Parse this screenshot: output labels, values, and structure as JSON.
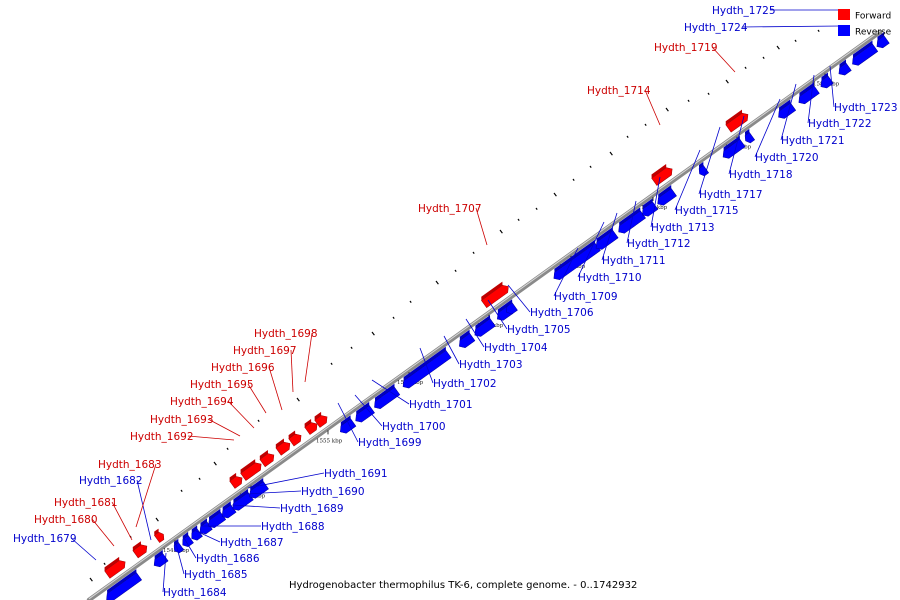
{
  "caption": "Hydrogenobacter thermophilus TK-6, complete genome. - 0..1742932",
  "legend": [
    {
      "label": "Forward",
      "color": "#ff0000"
    },
    {
      "label": "Reverse",
      "color": "#0000ff"
    }
  ],
  "colors": {
    "forward": "#ff0000",
    "reverse": "#0000ff",
    "forward_label": "#cc0000",
    "reverse_label": "#0000cc",
    "backbone": "#888888"
  },
  "kbp_ticks": [
    {
      "label": "1545 kbp",
      "kbp": 1545
    },
    {
      "label": "1550 kbp",
      "kbp": 1550
    },
    {
      "label": "1555 kbp",
      "kbp": 1555
    },
    {
      "label": "1560 kbp",
      "kbp": 1560
    },
    {
      "label": "1565 kbp",
      "kbp": 1565
    },
    {
      "label": "1570 kbp",
      "kbp": 1570
    },
    {
      "label": "1575 kbp",
      "kbp": 1575
    },
    {
      "label": "1580 kbp",
      "kbp": 1580
    },
    {
      "label": "1585 kbp",
      "kbp": 1585
    }
  ],
  "genes": [
    {
      "label": "Hydth_1679",
      "strand": "reverse"
    },
    {
      "label": "Hydth_1680",
      "strand": "forward"
    },
    {
      "label": "Hydth_1681",
      "strand": "forward"
    },
    {
      "label": "Hydth_1682",
      "strand": "reverse"
    },
    {
      "label": "Hydth_1683",
      "strand": "forward"
    },
    {
      "label": "Hydth_1684",
      "strand": "reverse"
    },
    {
      "label": "Hydth_1685",
      "strand": "reverse"
    },
    {
      "label": "Hydth_1686",
      "strand": "reverse"
    },
    {
      "label": "Hydth_1687",
      "strand": "reverse"
    },
    {
      "label": "Hydth_1688",
      "strand": "reverse"
    },
    {
      "label": "Hydth_1689",
      "strand": "reverse"
    },
    {
      "label": "Hydth_1690",
      "strand": "reverse"
    },
    {
      "label": "Hydth_1691",
      "strand": "reverse"
    },
    {
      "label": "Hydth_1692",
      "strand": "forward"
    },
    {
      "label": "Hydth_1693",
      "strand": "forward"
    },
    {
      "label": "Hydth_1694",
      "strand": "forward"
    },
    {
      "label": "Hydth_1695",
      "strand": "forward"
    },
    {
      "label": "Hydth_1696",
      "strand": "forward"
    },
    {
      "label": "Hydth_1697",
      "strand": "forward"
    },
    {
      "label": "Hydth_1698",
      "strand": "forward"
    },
    {
      "label": "Hydth_1699",
      "strand": "reverse"
    },
    {
      "label": "Hydth_1700",
      "strand": "reverse"
    },
    {
      "label": "Hydth_1701",
      "strand": "reverse"
    },
    {
      "label": "Hydth_1702",
      "strand": "reverse"
    },
    {
      "label": "Hydth_1703",
      "strand": "reverse"
    },
    {
      "label": "Hydth_1704",
      "strand": "reverse"
    },
    {
      "label": "Hydth_1705",
      "strand": "reverse"
    },
    {
      "label": "Hydth_1706",
      "strand": "reverse"
    },
    {
      "label": "Hydth_1707",
      "strand": "forward"
    },
    {
      "label": "Hydth_1709",
      "strand": "reverse"
    },
    {
      "label": "Hydth_1710",
      "strand": "reverse"
    },
    {
      "label": "Hydth_1711",
      "strand": "reverse"
    },
    {
      "label": "Hydth_1712",
      "strand": "reverse"
    },
    {
      "label": "Hydth_1713",
      "strand": "reverse"
    },
    {
      "label": "Hydth_1714",
      "strand": "forward"
    },
    {
      "label": "Hydth_1715",
      "strand": "reverse"
    },
    {
      "label": "Hydth_1717",
      "strand": "reverse"
    },
    {
      "label": "Hydth_1718",
      "strand": "reverse"
    },
    {
      "label": "Hydth_1719",
      "strand": "forward"
    },
    {
      "label": "Hydth_1720",
      "strand": "reverse"
    },
    {
      "label": "Hydth_1721",
      "strand": "reverse"
    },
    {
      "label": "Hydth_1722",
      "strand": "reverse"
    },
    {
      "label": "Hydth_1723",
      "strand": "reverse"
    },
    {
      "label": "Hydth_1724",
      "strand": "reverse"
    },
    {
      "label": "Hydth_1725",
      "strand": "reverse"
    }
  ]
}
